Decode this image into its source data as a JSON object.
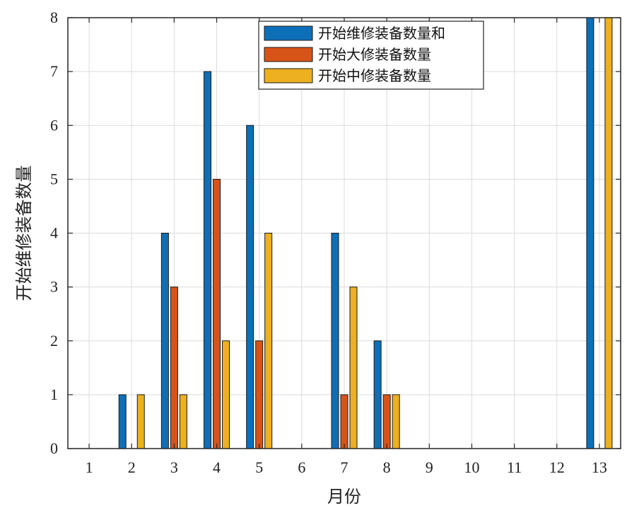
{
  "chart_data": {
    "type": "bar",
    "categories": [
      "1",
      "2",
      "3",
      "4",
      "5",
      "6",
      "7",
      "8",
      "9",
      "10",
      "11",
      "12",
      "13"
    ],
    "series": [
      {
        "name": "开始维修装备数量和",
        "color": "#0d6fb8",
        "values": [
          0,
          1,
          4,
          7,
          6,
          0,
          4,
          2,
          0,
          0,
          0,
          0,
          8
        ]
      },
      {
        "name": "开始大修装备数量",
        "color": "#d75418",
        "values": [
          0,
          0,
          3,
          5,
          2,
          0,
          1,
          1,
          0,
          0,
          0,
          0,
          0
        ]
      },
      {
        "name": "开始中修装备数量",
        "color": "#ecb020",
        "values": [
          0,
          1,
          1,
          2,
          4,
          0,
          3,
          1,
          0,
          0,
          0,
          0,
          8
        ]
      }
    ],
    "title": "",
    "xlabel": "月份",
    "ylabel": "开始维修装备数量",
    "ylim": [
      0,
      8
    ],
    "yticks": [
      "0",
      "1",
      "2",
      "3",
      "4",
      "5",
      "6",
      "7",
      "8"
    ],
    "grid": true,
    "legend_position": "top-right"
  }
}
